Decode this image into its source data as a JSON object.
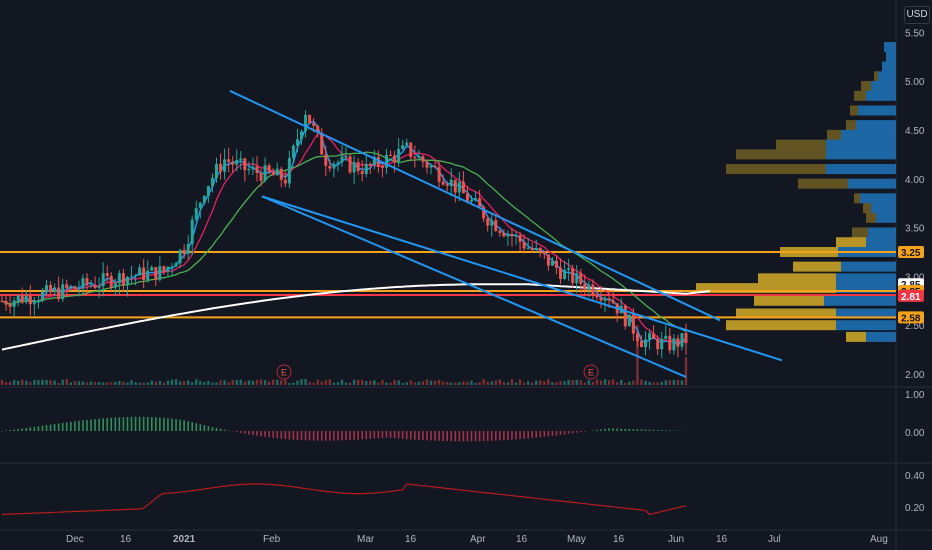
{
  "currency_button": "USD",
  "price_axis": [
    "5.50",
    "5.00",
    "4.50",
    "4.00",
    "3.50",
    "3.00",
    "2.50",
    "2.00"
  ],
  "price_badges": [
    {
      "label": "3.25",
      "value": 3.25,
      "bg": "#f7a21b",
      "fg": "#131722"
    },
    {
      "label": "2.85",
      "value": 2.92,
      "bg": "#ffffff",
      "fg": "#131722"
    },
    {
      "label": "2.85",
      "value": 2.85,
      "bg": "#f7a21b",
      "fg": "#131722"
    },
    {
      "label": "2.81",
      "value": 2.8,
      "bg": "#f23645",
      "fg": "#ffffff"
    },
    {
      "label": "2.58",
      "value": 2.58,
      "bg": "#f7a21b",
      "fg": "#131722"
    }
  ],
  "macd_axis": [
    "1.00",
    "0.00"
  ],
  "rsi_axis": [
    "0.40",
    "0.20"
  ],
  "time_axis": [
    {
      "label": "Dec",
      "bold": false
    },
    {
      "label": "16",
      "bold": false
    },
    {
      "label": "2021",
      "bold": true
    },
    {
      "label": "Feb",
      "bold": false
    },
    {
      "label": "Mar",
      "bold": false
    },
    {
      "label": "16",
      "bold": false
    },
    {
      "label": "Apr",
      "bold": false
    },
    {
      "label": "16",
      "bold": false
    },
    {
      "label": "May",
      "bold": false
    },
    {
      "label": "16",
      "bold": false
    },
    {
      "label": "Jun",
      "bold": false
    },
    {
      "label": "16",
      "bold": false
    },
    {
      "label": "Jul",
      "bold": false
    },
    {
      "label": "Aug",
      "bold": false
    }
  ],
  "earnings_markers": [
    "E",
    "E"
  ],
  "horizontal_levels": [
    3.25,
    2.85,
    2.81,
    2.58
  ],
  "colors": {
    "background": "#131722",
    "up": "#26a69a",
    "down": "#ef5350",
    "ma_fast": "#2196f3",
    "ma_mid": "#e91e63",
    "ma_slow": "#4caf50",
    "ma_long": "#ffffff",
    "trendline": "#2196f3",
    "level": "#f7a21b",
    "level_red": "#f23645",
    "profile_gold": "#c9a227",
    "profile_blue": "#1e6fb3"
  }
}
